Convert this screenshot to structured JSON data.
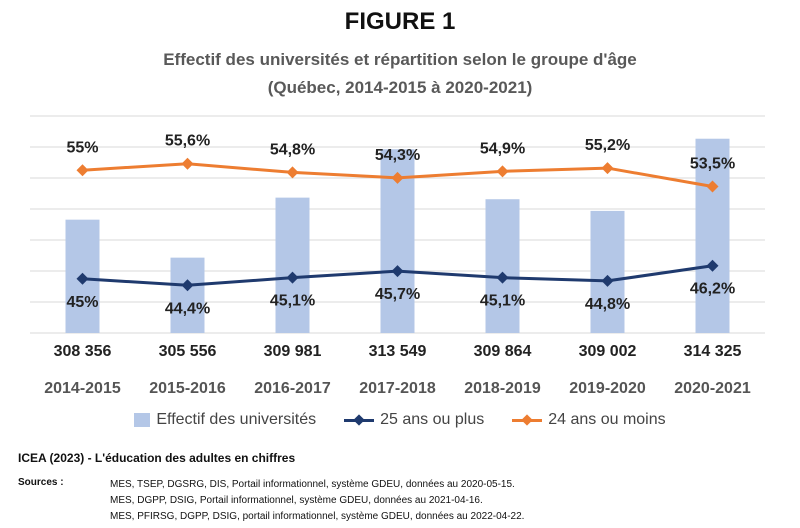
{
  "figure_label": "FIGURE 1",
  "chart_data": {
    "type": "bar",
    "title": "Effectif des universités et répartition selon le groupe d'âge",
    "subtitle": "(Québec, 2014-2015 à 2020-2021)",
    "categories": [
      "2014-2015",
      "2015-2016",
      "2016-2017",
      "2017-2018",
      "2018-2019",
      "2019-2020",
      "2020-2021"
    ],
    "series": [
      {
        "name": "Effectif des universités",
        "kind": "bar",
        "values": [
          308356,
          305556,
          309981,
          313549,
          309864,
          309002,
          314325
        ],
        "labels": [
          "308 356",
          "305 556",
          "309 981",
          "313 549",
          "309 864",
          "309 002",
          "314 325"
        ],
        "color": "#b4c7e7"
      },
      {
        "name": "25 ans ou plus",
        "kind": "line",
        "values": [
          45,
          44.4,
          45.1,
          45.7,
          45.1,
          44.8,
          46.2
        ],
        "labels": [
          "45%",
          "44,4%",
          "45,1%",
          "45,7%",
          "45,1%",
          "44,8%",
          "46,2%"
        ],
        "color": "#1f3a6e"
      },
      {
        "name": "24 ans ou moins",
        "kind": "line",
        "values": [
          55,
          55.6,
          54.8,
          54.3,
          54.9,
          55.2,
          53.5
        ],
        "labels": [
          "55%",
          "55,6%",
          "54,8%",
          "54,3%",
          "54,9%",
          "55,2%",
          "53,5%"
        ],
        "color": "#ed7d31"
      }
    ],
    "bar_axis_range": [
      300000,
      316000
    ],
    "line_axis_range": [
      40,
      60
    ],
    "grid": true,
    "legend": "bottom"
  },
  "source": {
    "title": "ICEA (2023) - L'éducation des adultes en chiffres",
    "label": "Sources :",
    "lines": [
      "MES, TSEP, DGSRG, DIS, Portail informationnel, système GDEU, données au 2020-05-15.",
      "MES, DGPP, DSIG, Portail informationnel, système GDEU, données au 2021-04-16.",
      "MES, PFIRSG, DGPP, DSIG, portail informationnel, système GDEU, données au 2022-04-22."
    ]
  }
}
